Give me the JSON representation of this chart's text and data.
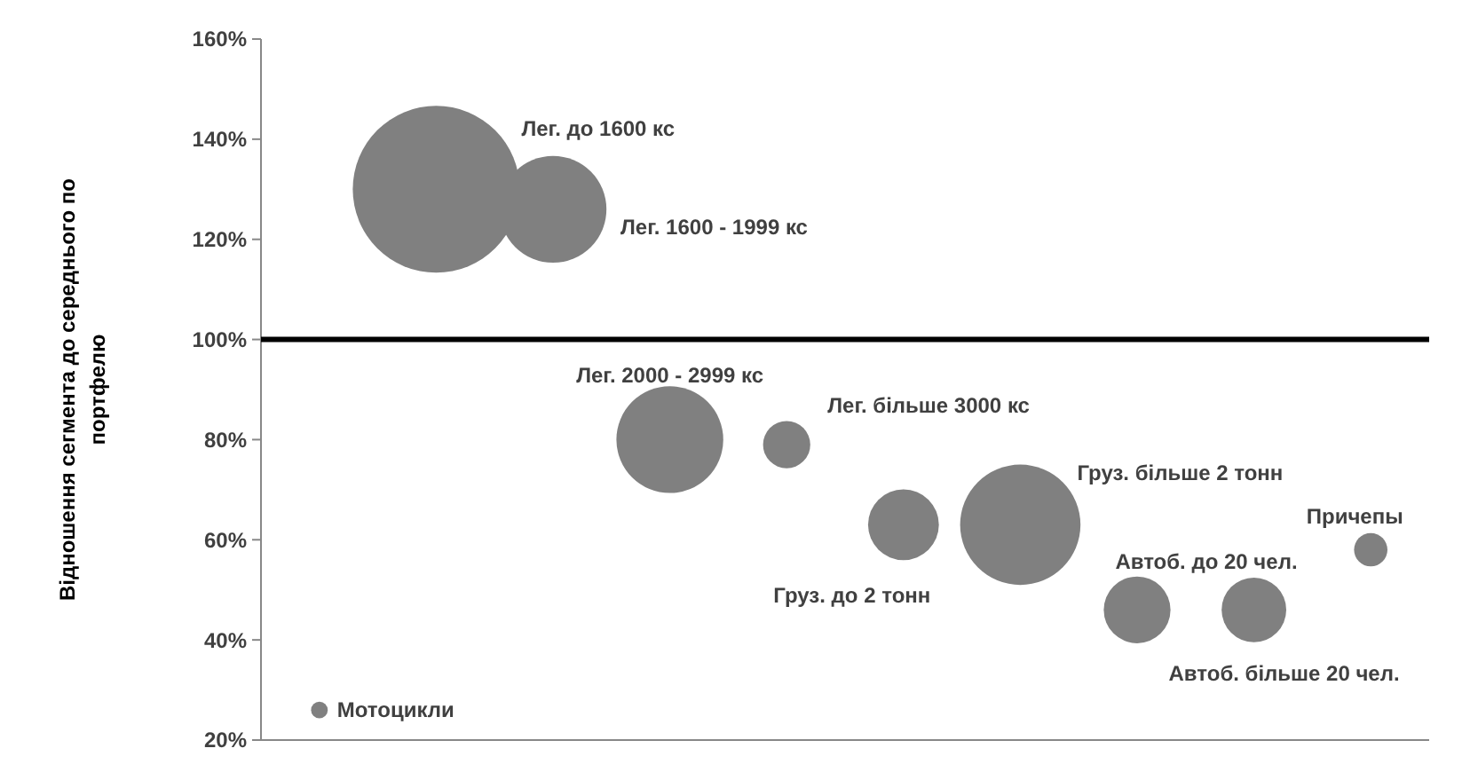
{
  "chart_data": {
    "type": "bubble",
    "ylabel": "Відношення сегмента до середнього по портфелю",
    "categories": [
      null,
      null,
      null,
      null,
      null,
      null,
      null,
      null,
      null,
      null
    ],
    "values": [
      26,
      130,
      126,
      80,
      79,
      63,
      63,
      46,
      46,
      58
    ],
    "sizes": [
      0.01,
      1,
      0.41,
      0.41,
      0.08,
      0.18,
      0.52,
      0.16,
      0.15,
      0.04
    ],
    "color": "#808080",
    "ylim": [
      20,
      160
    ],
    "yticks": [
      {
        "value": 20,
        "label": "20%"
      },
      {
        "value": 40,
        "label": "40%"
      },
      {
        "value": 60,
        "label": "60%"
      },
      {
        "value": 80,
        "label": "80%"
      },
      {
        "value": 100,
        "label": "100%"
      },
      {
        "value": 120,
        "label": "120%"
      },
      {
        "value": 140,
        "label": "140%"
      },
      {
        "value": 160,
        "label": "160%"
      }
    ],
    "annotations": [
      "Мотоцикли",
      "Лег. до 1600 кс",
      "Лег. 1600 - 1999 кс",
      "Лег. 2000 - 2999 кс",
      "Лег. більше 3000 кс",
      "Груз. до 2 тонн",
      "Груз. більше 2 тонн",
      "Автоб. до 20 чел.",
      "Автоб. більше 20 чел.",
      "Причепы"
    ],
    "ref_lines": [
      {
        "axis": "y",
        "value": 100,
        "color": "#000000"
      }
    ],
    "grid": false
  }
}
